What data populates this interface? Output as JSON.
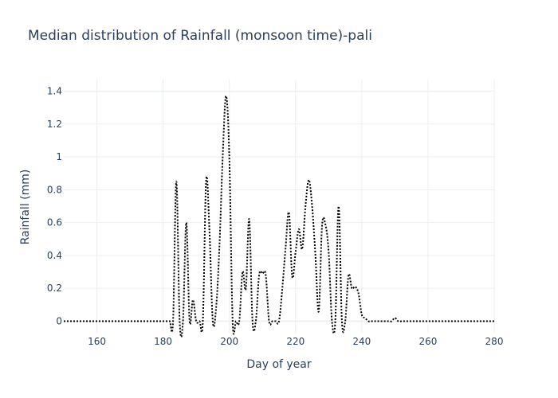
{
  "chart_data": {
    "type": "line",
    "title": "Median distribution of Rainfall (monsoon time)-pali",
    "xlabel": "Day of year",
    "ylabel": "Rainfall (mm)",
    "xlim": [
      150,
      280
    ],
    "ylim": [
      -0.07,
      1.47
    ],
    "x_ticks": [
      160,
      180,
      200,
      220,
      240,
      260,
      280
    ],
    "y_ticks": [
      0,
      0.2,
      0.4,
      0.6,
      0.8,
      1,
      1.2,
      1.4
    ],
    "x_tick_labels": [
      "160",
      "180",
      "200",
      "220",
      "240",
      "260",
      "280"
    ],
    "y_tick_labels": [
      "0",
      "0.2",
      "0.4",
      "0.6",
      "0.8",
      "1",
      "1.2",
      "1.4"
    ],
    "grid": true,
    "line_style": "dotted",
    "line_color": "#000000",
    "series": [
      {
        "x": [
          150,
          151,
          152,
          153,
          154,
          155,
          156,
          157,
          158,
          159,
          160,
          161,
          162,
          163,
          164,
          165,
          166,
          167,
          168,
          169,
          170,
          171,
          172,
          173,
          174,
          175,
          176,
          177,
          178,
          179,
          180,
          181,
          182,
          183,
          184,
          185,
          186,
          187,
          188,
          189,
          190,
          191,
          192,
          193,
          194,
          195,
          196,
          197,
          198,
          199,
          200,
          201,
          202,
          203,
          204,
          205,
          206,
          207,
          208,
          209,
          210,
          211,
          212,
          213,
          214,
          215,
          216,
          217,
          218,
          219,
          220,
          221,
          222,
          223,
          224,
          225,
          226,
          227,
          228,
          229,
          230,
          231,
          232,
          233,
          234,
          235,
          236,
          237,
          238,
          239,
          240,
          241,
          242,
          243,
          244,
          245,
          246,
          247,
          248,
          249,
          250,
          251,
          252,
          253,
          254,
          255,
          256,
          257,
          258,
          259,
          260,
          261,
          262,
          263,
          264,
          265,
          266,
          267,
          268,
          269,
          270,
          271,
          272,
          273,
          274,
          275,
          276,
          277,
          278,
          279,
          280
        ],
        "y": [
          0,
          0,
          0,
          0,
          0,
          0,
          0,
          0,
          0,
          0,
          0,
          0,
          0,
          0,
          0,
          0,
          0,
          0,
          0,
          0,
          0,
          0,
          0,
          0,
          0,
          0,
          0,
          0,
          0,
          0,
          0,
          0,
          0,
          0,
          0.85,
          0,
          0,
          0.6,
          0,
          0.13,
          0,
          0,
          0,
          0.86,
          0.55,
          0,
          0.08,
          0.45,
          1.0,
          1.37,
          1.0,
          0,
          0,
          0,
          0.3,
          0.2,
          0.62,
          0,
          0,
          0.28,
          0.29,
          0.28,
          0,
          0,
          0,
          0,
          0.2,
          0.45,
          0.66,
          0.27,
          0.42,
          0.56,
          0.44,
          0.7,
          0.86,
          0.7,
          0.4,
          0.06,
          0.58,
          0.59,
          0.42,
          0,
          0,
          0.7,
          0,
          0,
          0.28,
          0.2,
          0.21,
          0.17,
          0.04,
          0.02,
          0,
          0,
          0,
          0,
          0,
          0,
          0,
          0,
          0.02,
          0,
          0,
          0,
          0,
          0,
          0,
          0,
          0,
          0,
          0,
          0,
          0,
          0,
          0,
          0,
          0,
          0,
          0,
          0,
          0,
          0,
          0,
          0,
          0,
          0,
          0,
          0,
          0,
          0,
          0
        ]
      }
    ]
  }
}
